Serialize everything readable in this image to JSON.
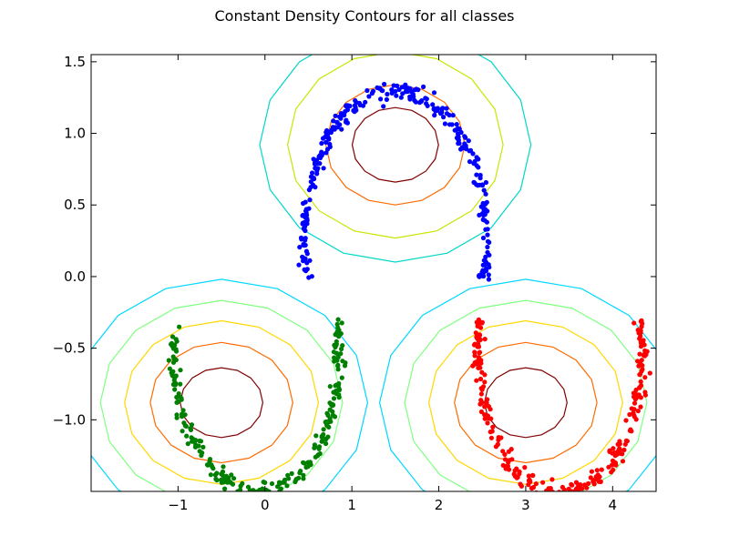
{
  "chart_data": {
    "type": "scatter",
    "title": "Constant Density Contours for all classes",
    "xlabel": "",
    "ylabel": "",
    "xlim": [
      -2.0,
      4.5
    ],
    "ylim": [
      -1.5,
      1.55
    ],
    "grid": false,
    "xticks": [
      -1,
      0,
      1,
      2,
      3,
      4
    ],
    "yticks": [
      -1.0,
      -0.5,
      0.0,
      0.5,
      1.0,
      1.5
    ],
    "xtick_labels": [
      "−1",
      "0",
      "1",
      "2",
      "3",
      "4"
    ],
    "ytick_labels": [
      "−1.0",
      "−0.5",
      "0.0",
      "0.5",
      "1.0",
      "1.5"
    ],
    "series": [
      {
        "color": "#0000ff",
        "arc": {
          "cx": 1.5,
          "cy": 0.25,
          "r": 1.05,
          "from_deg": -15,
          "to_deg": 195
        },
        "points": 300
      },
      {
        "color": "#008000",
        "arc": {
          "cx": -0.1,
          "cy": -0.55,
          "r": 0.95,
          "from_deg": -195,
          "to_deg": 15
        },
        "points": 260
      },
      {
        "color": "#ff0000",
        "arc": {
          "cx": 3.4,
          "cy": -0.55,
          "r": 0.95,
          "from_deg": -195,
          "to_deg": 15
        },
        "points": 260
      }
    ],
    "contours": [
      {
        "center": [
          1.5,
          0.92
        ],
        "rx": 0.8,
        "ry": 0.42,
        "levels": [
          {
            "scale": 0.62,
            "color": "#800000"
          },
          {
            "scale": 1.0,
            "color": "#ff6a00"
          },
          {
            "scale": 1.55,
            "color": "#c8e600"
          },
          {
            "scale": 1.95,
            "color": "#00d8c8"
          }
        ]
      },
      {
        "center": [
          -0.5,
          -0.88
        ],
        "rx": 0.82,
        "ry": 0.42,
        "levels": [
          {
            "scale": 0.58,
            "color": "#800000"
          },
          {
            "scale": 1.0,
            "color": "#ff6a00"
          },
          {
            "scale": 1.36,
            "color": "#ffd700"
          },
          {
            "scale": 1.7,
            "color": "#80ff80"
          },
          {
            "scale": 2.05,
            "color": "#00d8ff"
          }
        ]
      },
      {
        "center": [
          3.0,
          -0.88
        ],
        "rx": 0.82,
        "ry": 0.42,
        "levels": [
          {
            "scale": 0.58,
            "color": "#800000"
          },
          {
            "scale": 1.0,
            "color": "#ff6a00"
          },
          {
            "scale": 1.36,
            "color": "#ffd700"
          },
          {
            "scale": 1.7,
            "color": "#80ff80"
          },
          {
            "scale": 2.05,
            "color": "#00d8ff"
          }
        ]
      }
    ]
  }
}
